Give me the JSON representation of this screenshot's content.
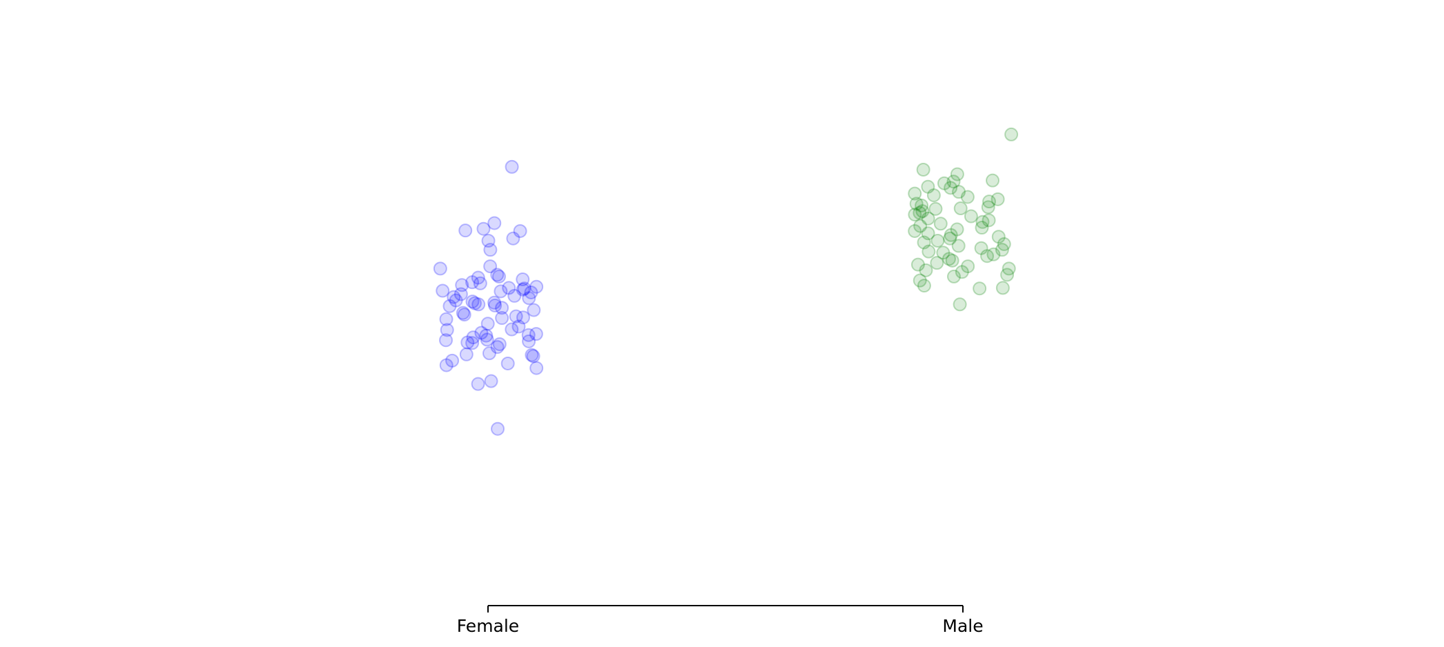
{
  "chart_data": {
    "type": "strip",
    "categories": [
      "Female",
      "Male"
    ],
    "colors": [
      "blue",
      "green"
    ],
    "ylim": [
      0,
      100
    ],
    "values": [
      [
        77.2,
        67.3,
        66.3,
        66.0,
        65.9,
        64.6,
        64.2,
        62.6,
        59.7,
        59.3,
        58.2,
        57.9,
        57.7,
        57.4,
        56.9,
        56.7,
        56.4,
        56.1,
        55.9,
        55.8,
        55.6,
        55.4,
        55.3,
        55.1,
        54.8,
        54.5,
        54.3,
        54.1,
        53.7,
        53.5,
        53.3,
        53.2,
        53.0,
        52.8,
        52.7,
        52.4,
        52.0,
        51.5,
        51.2,
        50.9,
        50.7,
        50.6,
        50.4,
        49.6,
        49.1,
        48.6,
        48.5,
        48.0,
        47.8,
        47.6,
        47.5,
        47.2,
        46.8,
        46.7,
        46.5,
        46.3,
        46.2,
        46.0,
        45.5,
        44.4,
        44.2,
        44.1,
        43.9,
        43.1,
        42.6,
        42.3,
        41.8,
        39.5,
        39.0,
        31.1
      ],
      [
        82.9,
        76.7,
        75.9,
        74.8,
        74.6,
        74.3,
        73.7,
        73.5,
        72.8,
        72.5,
        72.2,
        71.9,
        71.5,
        71.1,
        70.7,
        70.4,
        70.1,
        69.9,
        69.8,
        69.4,
        69.1,
        68.8,
        68.5,
        68.1,
        67.8,
        67.5,
        67.2,
        66.8,
        66.5,
        66.2,
        65.9,
        65.5,
        65.2,
        64.9,
        64.6,
        64.2,
        63.9,
        63.6,
        63.3,
        62.9,
        62.6,
        62.3,
        62.1,
        61.8,
        61.5,
        61.0,
        60.7,
        60.3,
        60.0,
        59.7,
        59.3,
        59.0,
        58.7,
        58.2,
        57.9,
        57.2,
        56.3,
        55.9,
        55.8,
        53.0
      ]
    ]
  }
}
